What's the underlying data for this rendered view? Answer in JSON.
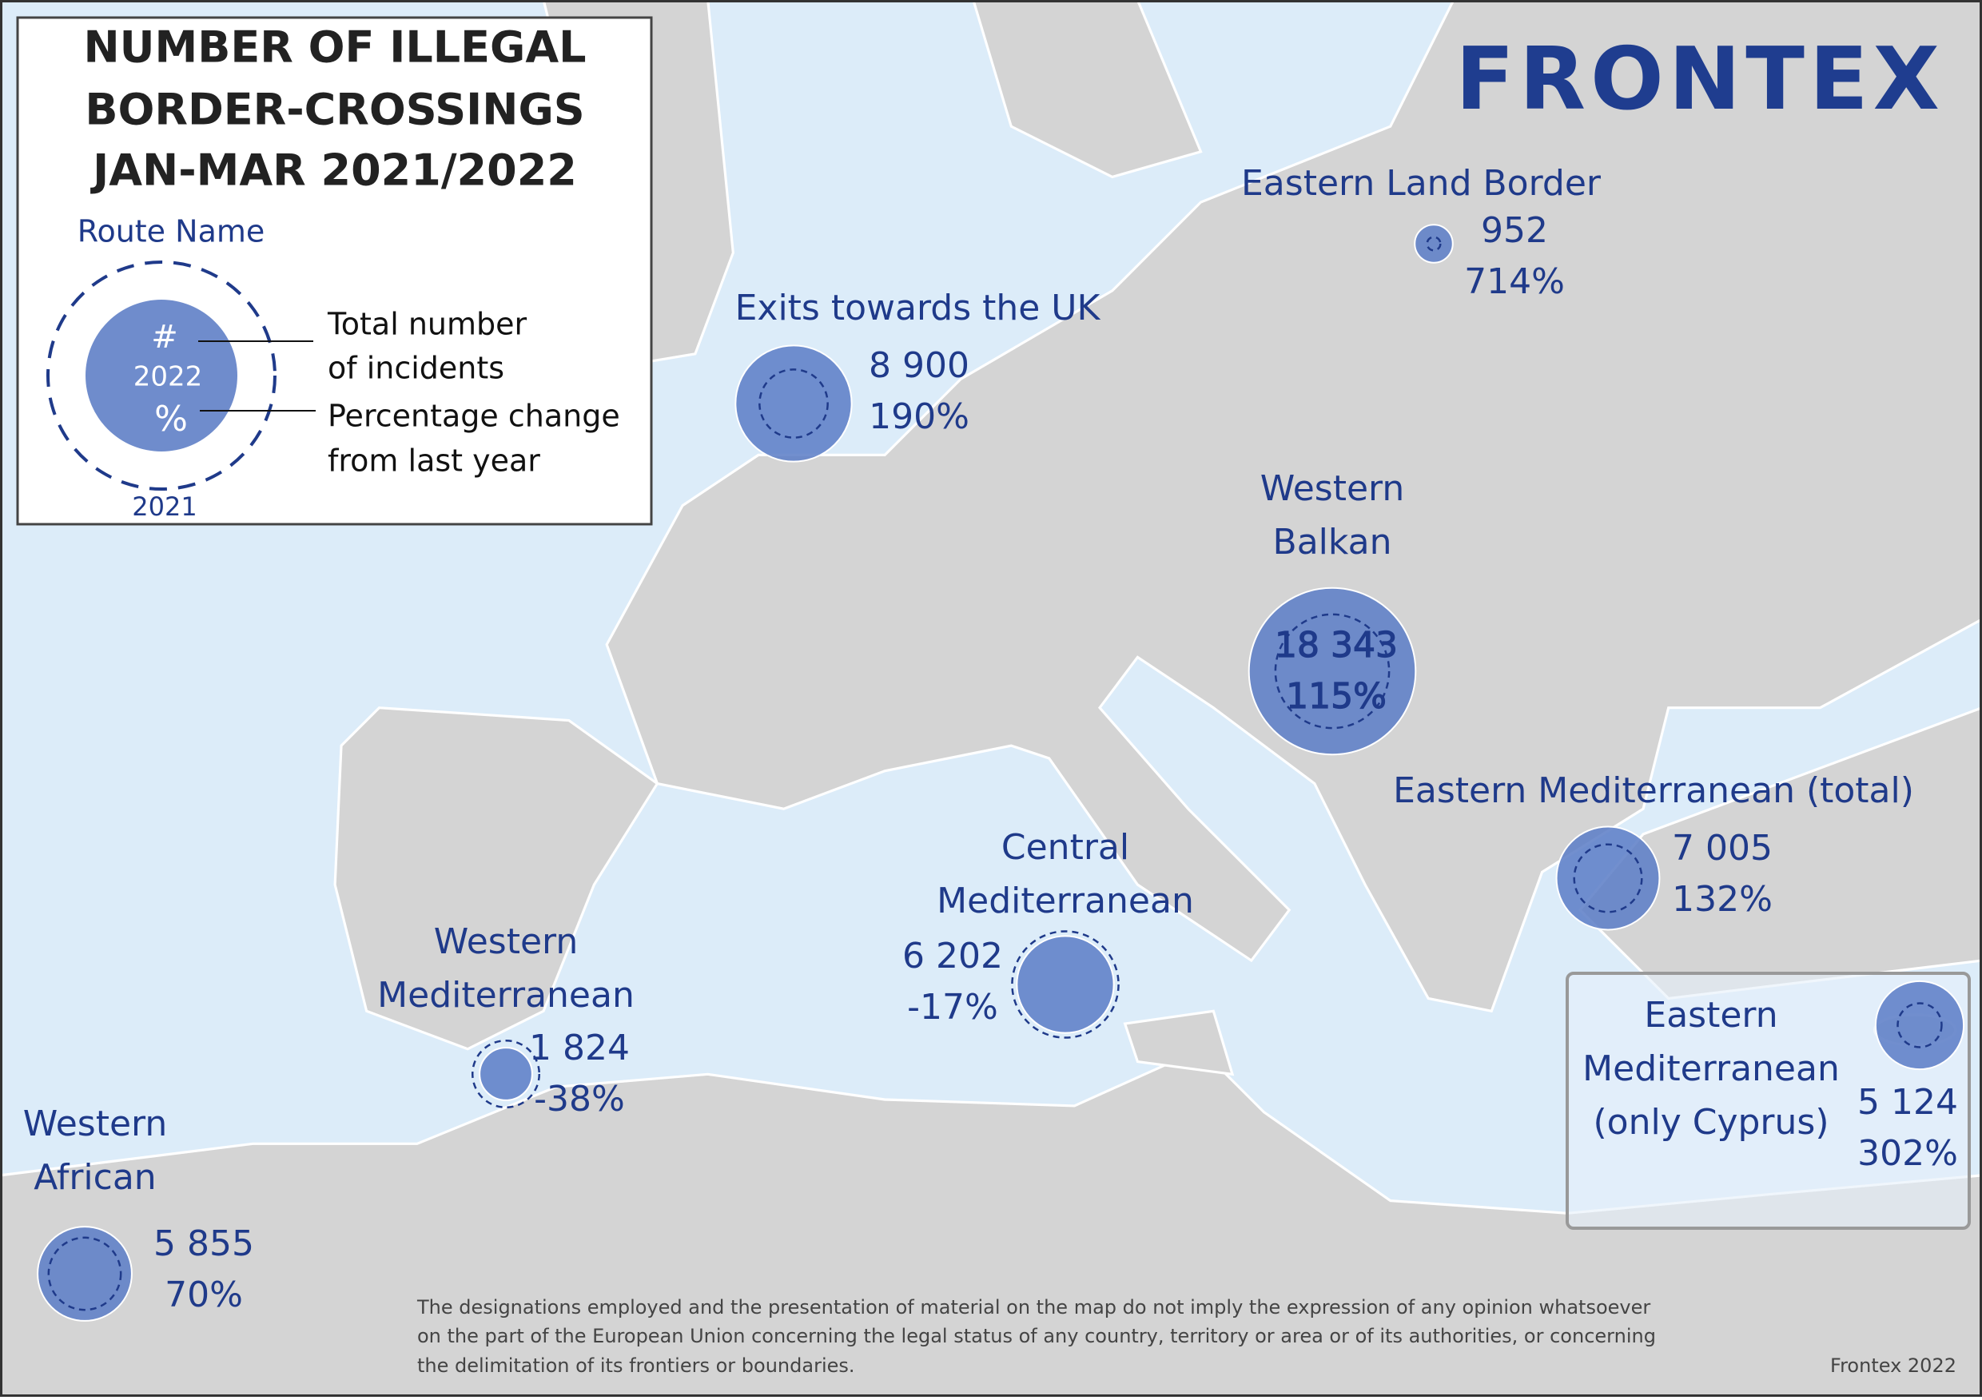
{
  "header": {
    "title": [
      "NUMBER OF ILLEGAL",
      "BORDER-CROSSINGS",
      "JAN-MAR 2021/2022"
    ],
    "logo": "FRONTEX"
  },
  "legend": {
    "route_name": "Route Name",
    "symbol_total": "#",
    "symbol_year_2022": "2022",
    "symbol_percent": "%",
    "symbol_year_2021": "2021",
    "total_text": [
      "Total number",
      "of incidents"
    ],
    "change_text": [
      "Percentage change",
      "from last year"
    ]
  },
  "routes": [
    {
      "name": [
        "Eastern Land Border"
      ],
      "total": {
        "value": 952,
        "label": "952"
      },
      "change": {
        "value": 714,
        "label": "714%"
      }
    },
    {
      "name": [
        "Exits towards the UK"
      ],
      "total": {
        "value": 8900,
        "label": "8 900"
      },
      "change": {
        "value": 190,
        "label": "190%"
      }
    },
    {
      "name": [
        "Western",
        "Balkan"
      ],
      "total": {
        "value": 18343,
        "label": "18 343"
      },
      "change": {
        "value": 115,
        "label": "115%"
      }
    },
    {
      "name": [
        "Eastern Mediterranean (total)"
      ],
      "total": {
        "value": 7005,
        "label": "7 005"
      },
      "change": {
        "value": 132,
        "label": "132%"
      }
    },
    {
      "name": [
        "Central",
        "Mediterranean"
      ],
      "total": {
        "value": 6202,
        "label": "6 202"
      },
      "change": {
        "value": -17,
        "label": "-17%"
      }
    },
    {
      "name": [
        "Western",
        "Mediterranean"
      ],
      "total": {
        "value": 1824,
        "label": "1 824"
      },
      "change": {
        "value": -38,
        "label": "-38%"
      }
    },
    {
      "name": [
        "Western",
        "African"
      ],
      "total": {
        "value": 5855,
        "label": "5 855"
      },
      "change": {
        "value": 70,
        "label": "70%"
      }
    },
    {
      "name": [
        "Eastern",
        "Mediterranean",
        "(only Cyprus)"
      ],
      "total": {
        "value": 5124,
        "label": "5 124"
      },
      "change": {
        "value": 302,
        "label": "302%"
      }
    }
  ],
  "footer": {
    "disclaimer": [
      "The designations employed and the presentation of material on the map do not imply the expression of any opinion whatsoever",
      "on the part of the European Union concerning the legal status of any country, territory or area or of its authorities, or concerning",
      "the delimitation of its frontiers or boundaries."
    ],
    "credit": "Frontex 2022"
  }
}
